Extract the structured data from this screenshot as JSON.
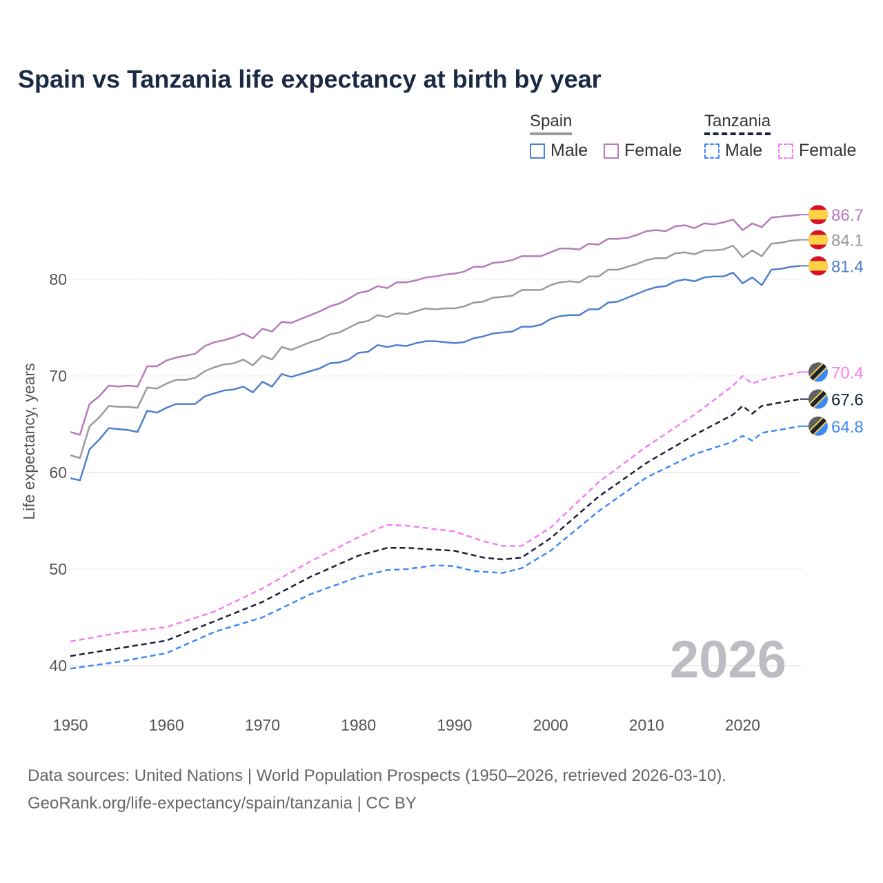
{
  "title": "Spain vs Tanzania life expectancy at birth by year",
  "legend": {
    "spain": {
      "label": "Spain",
      "male": "Male",
      "female": "Female"
    },
    "tanzania": {
      "label": "Tanzania",
      "male": "Male",
      "female": "Female"
    }
  },
  "year_watermark": "2026",
  "footer": {
    "line1": "Data sources: United Nations | World Population Prospects (1950–2026, retrieved 2026-03-10).",
    "line2": "GeoRank.org/life-expectancy/spain/tanzania | CC BY"
  },
  "chart_data": {
    "type": "line",
    "title": "Spain vs Tanzania life expectancy at birth by year",
    "xlabel": "",
    "ylabel": "Life expectancy, years",
    "xlim": [
      1950,
      2026
    ],
    "ylim": [
      38,
      88
    ],
    "xticks": [
      1950,
      1960,
      1970,
      1980,
      1990,
      2000,
      2010,
      2020
    ],
    "yticks": [
      40,
      50,
      60,
      70,
      80
    ],
    "grid": true,
    "legend_position": "top-right",
    "series": [
      {
        "name": "Spain Female",
        "country": "spain",
        "color": "#b57cbb",
        "dash": false,
        "end_label": "86.7",
        "x": [
          1950,
          1951,
          1952,
          1953,
          1954,
          1955,
          1956,
          1957,
          1958,
          1959,
          1960,
          1961,
          1962,
          1963,
          1964,
          1965,
          1966,
          1967,
          1968,
          1969,
          1970,
          1971,
          1972,
          1973,
          1974,
          1975,
          1976,
          1977,
          1978,
          1979,
          1980,
          1981,
          1982,
          1983,
          1984,
          1985,
          1986,
          1987,
          1988,
          1989,
          1990,
          1991,
          1992,
          1993,
          1994,
          1995,
          1996,
          1997,
          1998,
          1999,
          2000,
          2001,
          2002,
          2003,
          2004,
          2005,
          2006,
          2007,
          2008,
          2009,
          2010,
          2011,
          2012,
          2013,
          2014,
          2015,
          2016,
          2017,
          2018,
          2019,
          2020,
          2021,
          2022,
          2023,
          2024,
          2025,
          2026
        ],
        "y": [
          64.2,
          63.9,
          67.1,
          67.9,
          69.0,
          68.9,
          69.0,
          68.9,
          71.0,
          71.0,
          71.6,
          71.9,
          72.1,
          72.3,
          73.1,
          73.5,
          73.7,
          74.0,
          74.4,
          73.9,
          74.9,
          74.6,
          75.6,
          75.5,
          75.9,
          76.3,
          76.7,
          77.2,
          77.5,
          78.0,
          78.6,
          78.8,
          79.3,
          79.1,
          79.7,
          79.7,
          79.9,
          80.2,
          80.3,
          80.5,
          80.6,
          80.8,
          81.3,
          81.3,
          81.7,
          81.8,
          82.0,
          82.4,
          82.4,
          82.4,
          82.8,
          83.2,
          83.2,
          83.1,
          83.7,
          83.6,
          84.2,
          84.2,
          84.3,
          84.6,
          85.0,
          85.1,
          85.0,
          85.5,
          85.6,
          85.3,
          85.8,
          85.7,
          85.9,
          86.2,
          85.1,
          85.8,
          85.4,
          86.4,
          86.5,
          86.6,
          86.7
        ]
      },
      {
        "name": "Spain Total",
        "country": "spain",
        "color": "#9a9a9a",
        "dash": false,
        "end_label": "84.1",
        "x": [
          1950,
          1951,
          1952,
          1953,
          1954,
          1955,
          1956,
          1957,
          1958,
          1959,
          1960,
          1961,
          1962,
          1963,
          1964,
          1965,
          1966,
          1967,
          1968,
          1969,
          1970,
          1971,
          1972,
          1973,
          1974,
          1975,
          1976,
          1977,
          1978,
          1979,
          1980,
          1981,
          1982,
          1983,
          1984,
          1985,
          1986,
          1987,
          1988,
          1989,
          1990,
          1991,
          1992,
          1993,
          1994,
          1995,
          1996,
          1997,
          1998,
          1999,
          2000,
          2001,
          2002,
          2003,
          2004,
          2005,
          2006,
          2007,
          2008,
          2009,
          2010,
          2011,
          2012,
          2013,
          2014,
          2015,
          2016,
          2017,
          2018,
          2019,
          2020,
          2021,
          2022,
          2023,
          2024,
          2025,
          2026
        ],
        "y": [
          61.8,
          61.5,
          64.8,
          65.7,
          66.9,
          66.8,
          66.8,
          66.7,
          68.8,
          68.7,
          69.2,
          69.6,
          69.6,
          69.8,
          70.5,
          70.9,
          71.2,
          71.3,
          71.7,
          71.1,
          72.1,
          71.7,
          73.0,
          72.7,
          73.1,
          73.5,
          73.8,
          74.3,
          74.5,
          75.0,
          75.5,
          75.7,
          76.3,
          76.1,
          76.5,
          76.4,
          76.7,
          77.0,
          76.9,
          77.0,
          77.0,
          77.2,
          77.6,
          77.7,
          78.1,
          78.2,
          78.3,
          78.9,
          78.9,
          78.9,
          79.4,
          79.7,
          79.8,
          79.7,
          80.3,
          80.3,
          81.0,
          81.0,
          81.3,
          81.6,
          82.0,
          82.2,
          82.2,
          82.7,
          82.8,
          82.6,
          83.0,
          83.0,
          83.1,
          83.5,
          82.3,
          83.0,
          82.4,
          83.7,
          83.8,
          84.0,
          84.1
        ]
      },
      {
        "name": "Spain Male",
        "country": "spain",
        "color": "#4f7fcf",
        "dash": false,
        "end_label": "81.4",
        "x": [
          1950,
          1951,
          1952,
          1953,
          1954,
          1955,
          1956,
          1957,
          1958,
          1959,
          1960,
          1961,
          1962,
          1963,
          1964,
          1965,
          1966,
          1967,
          1968,
          1969,
          1970,
          1971,
          1972,
          1973,
          1974,
          1975,
          1976,
          1977,
          1978,
          1979,
          1980,
          1981,
          1982,
          1983,
          1984,
          1985,
          1986,
          1987,
          1988,
          1989,
          1990,
          1991,
          1992,
          1993,
          1994,
          1995,
          1996,
          1997,
          1998,
          1999,
          2000,
          2001,
          2002,
          2003,
          2004,
          2005,
          2006,
          2007,
          2008,
          2009,
          2010,
          2011,
          2012,
          2013,
          2014,
          2015,
          2016,
          2017,
          2018,
          2019,
          2020,
          2021,
          2022,
          2023,
          2024,
          2025,
          2026
        ],
        "y": [
          59.4,
          59.2,
          62.4,
          63.4,
          64.6,
          64.5,
          64.4,
          64.2,
          66.4,
          66.2,
          66.7,
          67.1,
          67.1,
          67.1,
          67.9,
          68.2,
          68.5,
          68.6,
          68.9,
          68.3,
          69.4,
          68.9,
          70.2,
          69.9,
          70.2,
          70.5,
          70.8,
          71.3,
          71.4,
          71.7,
          72.4,
          72.5,
          73.2,
          73.0,
          73.2,
          73.1,
          73.4,
          73.6,
          73.6,
          73.5,
          73.4,
          73.5,
          73.9,
          74.1,
          74.4,
          74.5,
          74.6,
          75.1,
          75.1,
          75.3,
          75.9,
          76.2,
          76.3,
          76.3,
          76.9,
          76.9,
          77.6,
          77.7,
          78.1,
          78.5,
          78.9,
          79.2,
          79.3,
          79.8,
          80.0,
          79.8,
          80.2,
          80.3,
          80.3,
          80.7,
          79.6,
          80.2,
          79.4,
          81.0,
          81.1,
          81.3,
          81.4
        ]
      },
      {
        "name": "Tanzania Female",
        "country": "tanzania",
        "color": "#f77ef2",
        "dash": true,
        "end_label": "70.4",
        "x": [
          1950,
          1955,
          1960,
          1965,
          1970,
          1975,
          1980,
          1983,
          1985,
          1990,
          1993,
          1995,
          1997,
          2000,
          2005,
          2010,
          2015,
          2019,
          2020,
          2021,
          2022,
          2026
        ],
        "y": [
          42.5,
          43.4,
          44.0,
          45.6,
          48.0,
          50.8,
          53.3,
          54.6,
          54.5,
          53.9,
          52.9,
          52.4,
          52.4,
          54.3,
          59.0,
          62.7,
          66.0,
          69.0,
          70.0,
          69.2,
          69.6,
          70.4
        ]
      },
      {
        "name": "Tanzania Total",
        "country": "tanzania",
        "color": "#1b2238",
        "dash": true,
        "end_label": "67.6",
        "x": [
          1950,
          1955,
          1960,
          1965,
          1970,
          1975,
          1980,
          1983,
          1985,
          1990,
          1993,
          1995,
          1997,
          2000,
          2005,
          2010,
          2015,
          2019,
          2020,
          2021,
          2022,
          2026
        ],
        "y": [
          41.0,
          41.8,
          42.6,
          44.6,
          46.6,
          49.2,
          51.4,
          52.2,
          52.2,
          51.9,
          51.2,
          51.0,
          51.2,
          53.2,
          57.5,
          61.0,
          63.9,
          66.0,
          66.9,
          66.1,
          66.9,
          67.6
        ]
      },
      {
        "name": "Tanzania Male",
        "country": "tanzania",
        "color": "#3d8af7",
        "dash": true,
        "end_label": "64.8",
        "x": [
          1950,
          1955,
          1960,
          1965,
          1970,
          1975,
          1980,
          1983,
          1985,
          1988,
          1990,
          1992,
          1995,
          1997,
          2000,
          2005,
          2010,
          2015,
          2019,
          2020,
          2021,
          2022,
          2026
        ],
        "y": [
          39.7,
          40.4,
          41.3,
          43.5,
          45.0,
          47.4,
          49.2,
          49.9,
          50.0,
          50.4,
          50.3,
          49.8,
          49.6,
          50.1,
          51.9,
          56.0,
          59.5,
          61.9,
          63.2,
          63.8,
          63.3,
          64.1,
          64.8
        ]
      }
    ]
  }
}
